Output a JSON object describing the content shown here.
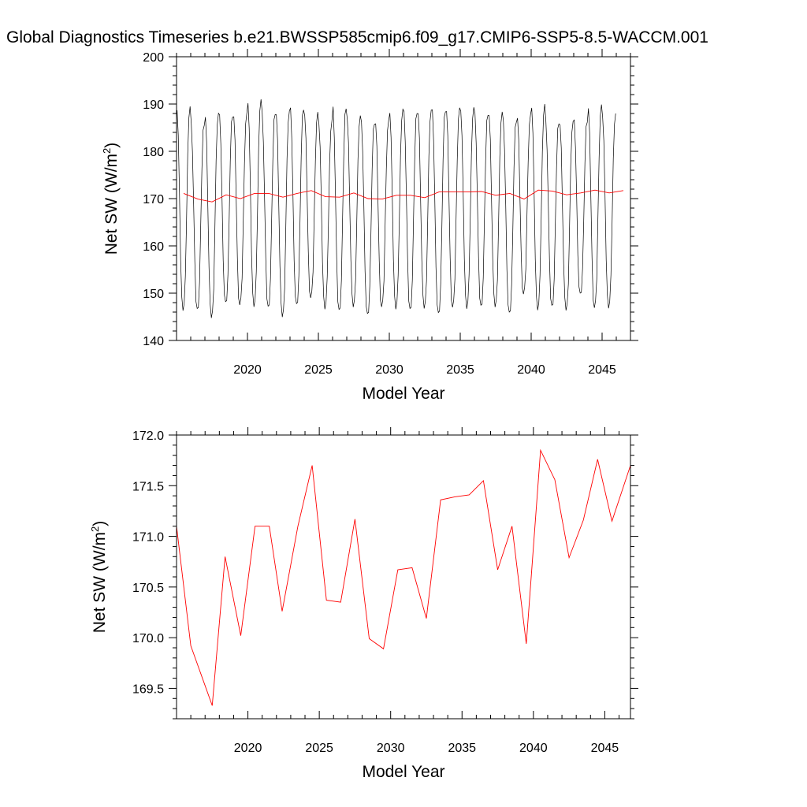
{
  "title": "Global Diagnostics Timeseries b.e21.BWSSP585cmip6.f09_g17.CMIP6-SSP5-8.5-WACCM.001",
  "colors": {
    "monthly": "#000000",
    "annual": "#ff0000",
    "axes": "#000000"
  },
  "chart_data": [
    {
      "type": "line",
      "xlabel": "Model Year",
      "ylabel": {
        "prefix": "Net SW (W/m",
        "sup": "2",
        "suffix": ")"
      },
      "xlim": [
        2015,
        2047
      ],
      "ylim": [
        140,
        200
      ],
      "xticks": [
        2020,
        2025,
        2030,
        2035,
        2040,
        2045
      ],
      "yticks": [
        140,
        150,
        160,
        170,
        180,
        190,
        200
      ],
      "ytick_labels": [
        "140",
        "150",
        "160",
        "170",
        "180",
        "190",
        "200"
      ],
      "grid": false,
      "series": [
        {
          "key": "monthly",
          "color": "#000000",
          "months_per_year": 12,
          "x_start": 2015.04,
          "monthly_climatology": [
            187.5,
            182,
            170,
            157,
            149,
            147,
            148,
            153,
            165,
            178,
            186,
            187.8
          ],
          "yearly_max": [
            189.5,
            186,
            187.8,
            187.5,
            187.6,
            191,
            188.3,
            188.3,
            189,
            187.8,
            186.5,
            189.5,
            187.3,
            186,
            186.1,
            188.9,
            188.5,
            188.5,
            188.6,
            188.7,
            189.3,
            188.1,
            188.1,
            186.4,
            187.3,
            190,
            186.3,
            186.1,
            186.4,
            189.4,
            188
          ],
          "yearly_min": [
            146.8,
            146.5,
            145,
            147.7,
            147.5,
            147.6,
            147,
            145.2,
            147.3,
            149,
            147.1,
            146.3,
            147.3,
            145.2,
            147.1,
            147.1,
            146.5,
            147,
            145.4,
            147,
            147.2,
            147.2,
            147.3,
            145.5,
            149.8,
            146.9,
            147.2,
            146.6,
            149.5,
            146.9,
            147.3
          ]
        },
        {
          "key": "annual",
          "color": "#ff0000",
          "x": [
            2015.5,
            2016.5,
            2017.5,
            2018.5,
            2019.5,
            2020.5,
            2021.5,
            2022.5,
            2023.5,
            2024.5,
            2025.5,
            2026.5,
            2027.5,
            2028.5,
            2029.5,
            2030.5,
            2031.5,
            2032.5,
            2033.5,
            2034.5,
            2035.5,
            2036.5,
            2037.5,
            2038.5,
            2039.5,
            2040.5,
            2041.5,
            2042.5,
            2043.5,
            2044.5,
            2045.5,
            2046.5
          ],
          "values": [
            171.1,
            169.9,
            169.3,
            170.8,
            170.0,
            171.1,
            171.1,
            170.3,
            171.1,
            171.7,
            170.4,
            170.3,
            171.2,
            170.0,
            169.9,
            170.7,
            170.7,
            170.2,
            171.4,
            171.4,
            171.4,
            171.5,
            170.7,
            171.1,
            169.9,
            171.8,
            171.6,
            170.8,
            171.2,
            171.8,
            171.2,
            171.7
          ]
        }
      ]
    },
    {
      "type": "line",
      "xlabel": "Model Year",
      "ylabel": {
        "prefix": "Net SW (W/m",
        "sup": "2",
        "suffix": ")"
      },
      "xlim": [
        2015,
        2046.8
      ],
      "ylim": [
        169.2,
        172.0
      ],
      "xticks": [
        2020,
        2025,
        2030,
        2035,
        2040,
        2045
      ],
      "yticks": [
        169.5,
        170.0,
        170.5,
        171.0,
        171.5,
        172.0
      ],
      "ytick_labels": [
        "169.5",
        "170.0",
        "170.5",
        "171.0",
        "171.5",
        "172.0"
      ],
      "grid": false,
      "series": [
        {
          "key": "annual",
          "color": "#ff0000",
          "x": [
            2015,
            2016,
            2017.5,
            2018.4,
            2019.5,
            2020.5,
            2021.5,
            2022.4,
            2023.5,
            2024.5,
            2025.5,
            2026.5,
            2027.5,
            2028.5,
            2029.5,
            2030.5,
            2031.5,
            2032.5,
            2033.5,
            2034.5,
            2035.5,
            2036.5,
            2037.5,
            2038.5,
            2039.5,
            2040.5,
            2041.5,
            2042.5,
            2043.5,
            2044.5,
            2045.5,
            2046.8
          ],
          "values": [
            171.1,
            169.92,
            169.33,
            170.8,
            170.02,
            171.1,
            171.1,
            170.26,
            171.1,
            171.7,
            170.37,
            170.35,
            171.17,
            169.99,
            169.89,
            170.67,
            170.69,
            170.19,
            171.36,
            171.39,
            171.41,
            171.55,
            170.67,
            171.1,
            169.94,
            171.85,
            171.56,
            170.79,
            171.16,
            171.76,
            171.15,
            171.7
          ]
        }
      ]
    }
  ]
}
